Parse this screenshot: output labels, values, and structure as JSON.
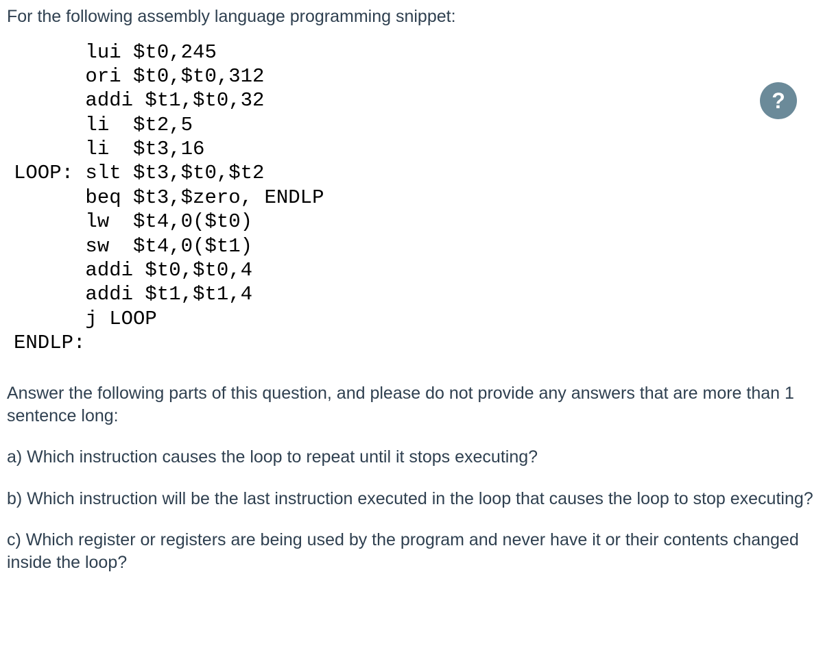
{
  "intro": "For the following assembly language programming snippet:",
  "code": "      lui $t0,245\n      ori $t0,$t0,312\n      addi $t1,$t0,32\n      li  $t2,5\n      li  $t3,16\nLOOP: slt $t3,$t0,$t2\n      beq $t3,$zero, ENDLP\n      lw  $t4,0($t0)\n      sw  $t4,0($t1)\n      addi $t0,$t0,4\n      addi $t1,$t1,4\n      j LOOP\nENDLP:",
  "instructions": "Answer the following parts of this question, and please do not provide any answers that are more than 1 sentence long:",
  "questions": {
    "a": "a) Which instruction causes the loop to repeat until it stops executing?",
    "b": "b) Which instruction will be the last instruction executed in the loop that causes the loop to stop executing?",
    "c": "c) Which register or registers are being used by the program and never have it or their contents changed inside the loop?"
  },
  "help_badge": "?",
  "colors": {
    "text": "#2f4050",
    "code": "#000000",
    "badge_bg": "#6b8a99",
    "badge_fg": "#ffffff",
    "background": "#ffffff"
  }
}
